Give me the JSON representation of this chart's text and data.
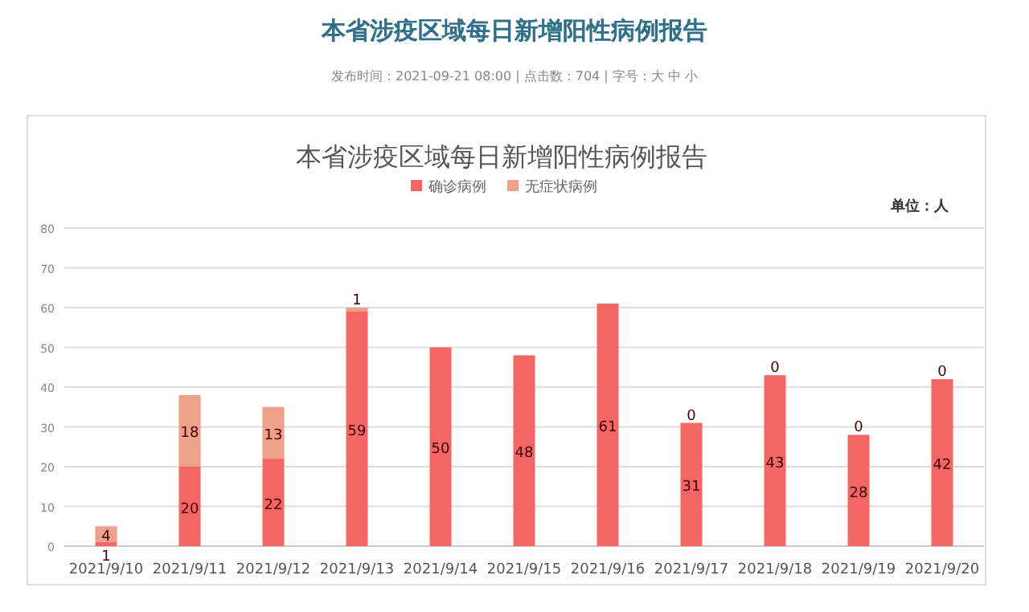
{
  "chart_data": {
    "type": "bar",
    "stacked": true,
    "title": "本省涉疫区域每日新增阳性病例报告",
    "subtitle": "本省涉疫区域每日新增阳性病例报告",
    "ylabel": "单位：人",
    "annotations": [
      "发布时间：2021-09-21 08:00 | 点击数：704 | 字号：大 中 小"
    ],
    "categories": [
      "2021/9/10",
      "2021/9/11",
      "2021/9/12",
      "2021/9/13",
      "2021/9/14",
      "2021/9/15",
      "2021/9/16",
      "2021/9/17",
      "2021/9/18",
      "2021/9/19",
      "2021/9/20"
    ],
    "series": [
      {
        "name": "确诊病例",
        "color": "#f26666",
        "values": [
          1,
          20,
          22,
          59,
          50,
          48,
          61,
          31,
          43,
          28,
          42
        ]
      },
      {
        "name": "无症状病例",
        "color": "#eda08a",
        "values": [
          4,
          18,
          13,
          1,
          null,
          null,
          null,
          0,
          0,
          0,
          0
        ]
      }
    ],
    "ylim": [
      0,
      80
    ],
    "yticks": [
      0,
      10,
      20,
      30,
      40,
      50,
      60,
      70,
      80
    ],
    "grid": "y",
    "legend": "top",
    "data_labels": true
  }
}
